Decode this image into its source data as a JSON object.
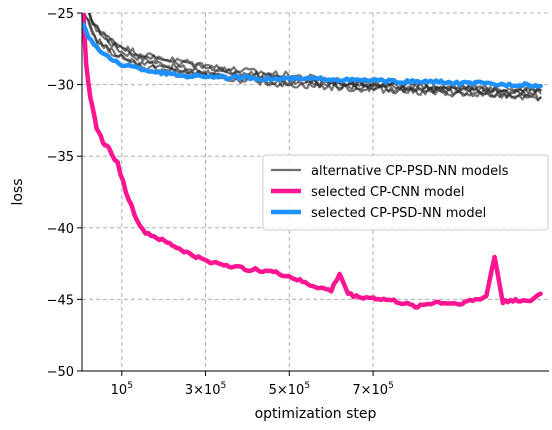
{
  "chart_data": {
    "type": "line",
    "xlabel": "optimization step",
    "ylabel": "loss",
    "xlim": [
      5000,
      1120000
    ],
    "ylim": [
      -50,
      -25
    ],
    "x_ticks": [
      {
        "value": 100000,
        "base": "10",
        "exp": "5"
      },
      {
        "value": 300000,
        "base": "3×10",
        "exp": "5"
      },
      {
        "value": 500000,
        "base": "5×10",
        "exp": "5"
      },
      {
        "value": 700000,
        "base": "7×10",
        "exp": "5"
      }
    ],
    "y_ticks": [
      {
        "value": -25,
        "label": "−25"
      },
      {
        "value": -30,
        "label": "−30"
      },
      {
        "value": -35,
        "label": "−35"
      },
      {
        "value": -40,
        "label": "−40"
      },
      {
        "value": -45,
        "label": "−45"
      },
      {
        "value": -50,
        "label": "−50"
      }
    ],
    "grid": true,
    "legend_position": "center-right",
    "legend": [
      {
        "label": "alternative CP-PSD-NN models",
        "color": "#6e6e6e"
      },
      {
        "label": "selected CP-CNN model",
        "color": "#ff1493"
      },
      {
        "label": "selected CP-PSD-NN model",
        "color": "#1e90ff"
      }
    ],
    "series": [
      {
        "name": "alternative CP-PSD-NN models",
        "color": "#2a2a2a",
        "opacity": 0.65,
        "width": 2.2,
        "x": [
          8000,
          30000,
          60000,
          100000,
          150000,
          200000,
          300000,
          400000,
          500000,
          600000,
          700000,
          800000,
          900000,
          1000000,
          1100000
        ],
        "y": [
          -24.6,
          -25.6,
          -26.8,
          -27.7,
          -28.2,
          -28.6,
          -29.1,
          -29.4,
          -29.6,
          -29.8,
          -30.0,
          -30.2,
          -30.4,
          -30.5,
          -30.6
        ]
      },
      {
        "name": "alternative CP-PSD-NN models",
        "color": "#2a2a2a",
        "opacity": 0.65,
        "width": 2.2,
        "x": [
          8000,
          40000,
          80000,
          120000,
          180000,
          250000,
          350000,
          450000,
          550000,
          650000,
          750000,
          850000,
          950000,
          1050000,
          1100000
        ],
        "y": [
          -24.2,
          -26.1,
          -27.0,
          -27.6,
          -28.1,
          -28.4,
          -28.9,
          -29.2,
          -29.5,
          -29.8,
          -30.0,
          -30.1,
          -30.3,
          -30.4,
          -30.4
        ]
      },
      {
        "name": "alternative CP-PSD-NN models",
        "color": "#2a2a2a",
        "opacity": 0.65,
        "width": 2.2,
        "x": [
          8000,
          30000,
          70000,
          110000,
          160000,
          220000,
          320000,
          420000,
          520000,
          620000,
          720000,
          820000,
          920000,
          1020000,
          1100000
        ],
        "y": [
          -24.8,
          -26.6,
          -27.6,
          -28.3,
          -28.8,
          -29.0,
          -29.4,
          -29.7,
          -29.9,
          -30.1,
          -30.3,
          -30.4,
          -30.6,
          -30.8,
          -30.9
        ]
      },
      {
        "name": "alternative CP-PSD-NN models",
        "color": "#2a2a2a",
        "opacity": 0.65,
        "width": 2.2,
        "x": [
          8000,
          50000,
          90000,
          140000,
          200000,
          280000,
          380000,
          480000,
          580000,
          680000,
          780000,
          880000,
          980000,
          1100000
        ],
        "y": [
          -24.5,
          -26.4,
          -27.3,
          -27.9,
          -28.3,
          -28.7,
          -29.2,
          -29.5,
          -29.8,
          -30.0,
          -30.1,
          -30.2,
          -30.3,
          -30.4
        ]
      },
      {
        "name": "alternative CP-PSD-NN models",
        "color": "#2a2a2a",
        "opacity": 0.65,
        "width": 2.2,
        "x": [
          8000,
          40000,
          80000,
          130000,
          190000,
          260000,
          360000,
          460000,
          560000,
          660000,
          760000,
          860000,
          960000,
          1060000,
          1100000
        ],
        "y": [
          -24.9,
          -26.9,
          -27.8,
          -28.4,
          -28.7,
          -29.2,
          -29.6,
          -29.9,
          -30.1,
          -30.3,
          -30.4,
          -30.6,
          -30.7,
          -30.8,
          -30.9
        ]
      },
      {
        "name": "selected CP-CNN model",
        "color": "#ff1493",
        "opacity": 1,
        "width": 4.5,
        "x": [
          8000,
          15000,
          25000,
          40000,
          55000,
          70000,
          90000,
          110000,
          130000,
          150000,
          170000,
          190000,
          220000,
          260000,
          300000,
          350000,
          400000,
          450000,
          500000,
          550000,
          600000,
          620000,
          640000,
          660000,
          700000,
          750000,
          800000,
          850000,
          900000,
          950000,
          970000,
          990000,
          1010000,
          1040000,
          1070000,
          1100000
        ],
        "y": [
          -25.0,
          -28.5,
          -31.0,
          -33.0,
          -34.0,
          -34.5,
          -35.5,
          -37.5,
          -39.0,
          -40.2,
          -40.5,
          -40.8,
          -41.2,
          -41.8,
          -42.3,
          -42.6,
          -42.9,
          -43.0,
          -43.4,
          -44.0,
          -44.4,
          -43.2,
          -44.6,
          -44.8,
          -44.9,
          -45.1,
          -45.5,
          -45.2,
          -45.3,
          -45.0,
          -44.8,
          -42.0,
          -45.2,
          -45.0,
          -45.2,
          -44.6
        ]
      },
      {
        "name": "selected CP-PSD-NN model",
        "color": "#1e90ff",
        "opacity": 1,
        "width": 4.5,
        "x": [
          8000,
          20000,
          40000,
          60000,
          80000,
          100000,
          130000,
          160000,
          200000,
          250000,
          300000,
          350000,
          400000,
          450000,
          500000,
          550000,
          600000,
          650000,
          700000,
          750000,
          800000,
          850000,
          900000,
          950000,
          1000000,
          1050000,
          1100000
        ],
        "y": [
          -25.8,
          -26.6,
          -27.4,
          -28.0,
          -28.3,
          -28.6,
          -28.8,
          -29.0,
          -29.2,
          -29.4,
          -29.4,
          -29.5,
          -29.5,
          -29.6,
          -29.6,
          -29.6,
          -29.6,
          -29.7,
          -29.7,
          -29.8,
          -29.8,
          -29.8,
          -29.9,
          -29.9,
          -30.0,
          -30.0,
          -30.1
        ]
      }
    ]
  }
}
